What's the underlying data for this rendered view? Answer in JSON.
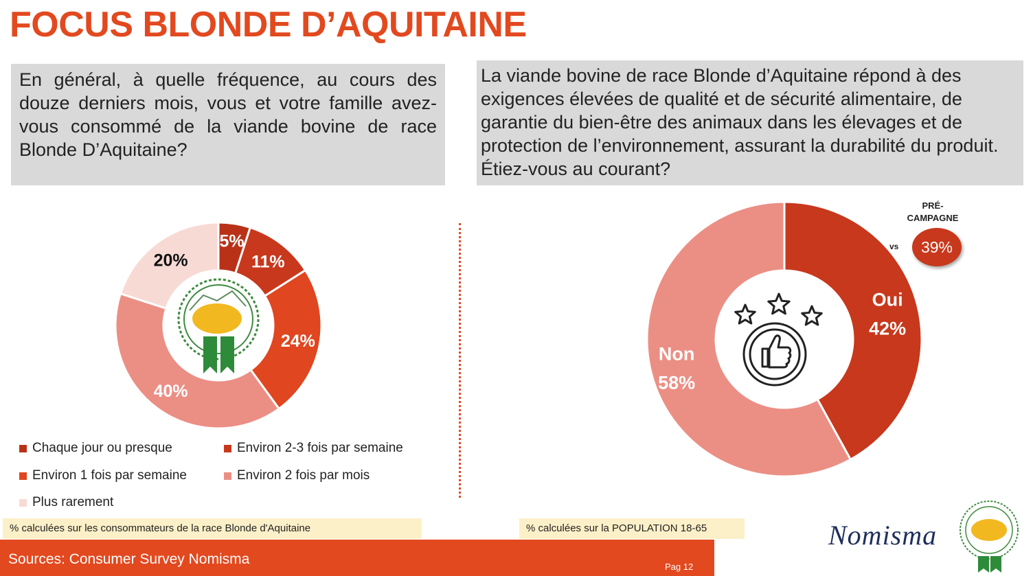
{
  "title": "FOCUS BLONDE D’AQUITAINE",
  "left_question": "En général, à quelle fréquence, au cours des douze derniers mois, vous et votre famille avez-vous consommé de la viande bovine de race Blonde D’Aquitaine?",
  "right_question": "La viande bovine de race Blonde d’Aquitaine répond à des exigences élevées de qualité et de sécurité alimentaire, de garantie du bien-être des animaux dans les élevages et de protection de l’environnement, assurant la durabilité du produit. Étiez-vous au courant?",
  "logo": {
    "top_text": "BLONDE D'AQUITAINE",
    "bottom_text": "EUROPEAN BEEF EXCELLENCE"
  },
  "colors": {
    "accent": "#e2491f",
    "dark_red": "#b93218",
    "red": "#c8381c",
    "orange_red": "#e0461f",
    "salmon": "#eb8f85",
    "pale_pink": "#f8dad5",
    "note_bg": "#fcf0c8"
  },
  "chart_data": [
    {
      "type": "pie",
      "donut": true,
      "categories": [
        "Chaque jour ou presque",
        "Environ 2-3 fois par semaine",
        "Environ 1 fois par semaine",
        "Environ 2 fois par mois",
        "Plus rarement"
      ],
      "values": [
        5,
        11,
        24,
        40,
        20
      ],
      "labels": [
        "5%",
        "11%",
        "24%",
        "40%",
        "20%"
      ],
      "colors": [
        "#b93218",
        "#c8381c",
        "#e0461f",
        "#eb8f85",
        "#f8dad5"
      ],
      "legend_position": "bottom",
      "note": "% calculées sur les consommateurs de la race Blonde d'Aquitaine"
    },
    {
      "type": "pie",
      "donut": true,
      "categories": [
        "Oui",
        "Non"
      ],
      "values": [
        42,
        58
      ],
      "labels": [
        "42%",
        "58%"
      ],
      "colors": [
        "#c8381c",
        "#eb8f85"
      ],
      "comparison": {
        "label": "PRÉ-\nCAMPAGNE",
        "vs": "vs",
        "value": "39%"
      },
      "note": "% calculées sur la POPULATION 18-65"
    }
  ],
  "footer": {
    "sources": "Sources: Consumer Survey Nomisma",
    "page": "Pag 12",
    "brand": "Nomisma"
  }
}
